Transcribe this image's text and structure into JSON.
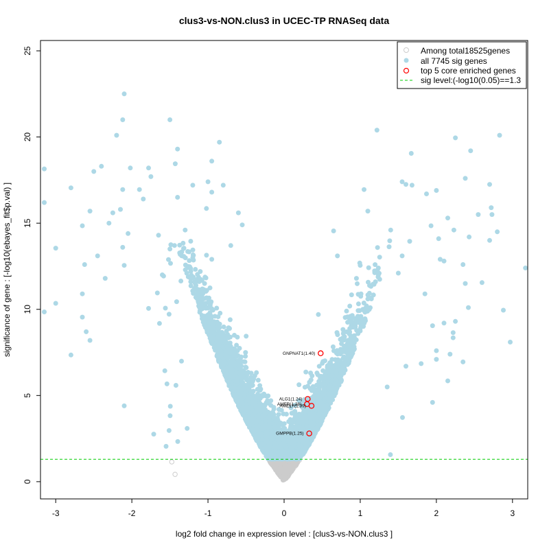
{
  "chart_data": {
    "type": "scatter",
    "title": "clus3-vs-NON.clus3 in UCEC-TP RNASeq data",
    "xlabel": "log2 fold change in expression level : [clus3-vs-NON.clus3 ]",
    "ylabel": "significance of gene : [-log10(ebayes_fit$p.val) ]",
    "xlim": [
      -3.2,
      3.2
    ],
    "ylim": [
      -1.0,
      25.6
    ],
    "x_ticks": [
      -3,
      -2,
      -1,
      0,
      1,
      2,
      3
    ],
    "y_ticks": [
      0,
      5,
      10,
      15,
      20,
      25
    ],
    "sig_level": 1.3,
    "colors": {
      "non_sig": "#cccccc",
      "sig": "#add8e6",
      "core": "#ff0000",
      "threshold": "#00cc00",
      "axis": "#000000"
    },
    "legend": {
      "placement": "top-right",
      "items": [
        {
          "label": "Among total18525genes",
          "marker": "open-circle",
          "color": "#cccccc"
        },
        {
          "label": "all 7745 sig genes",
          "marker": "filled-circle",
          "color": "#add8e6"
        },
        {
          "label": "top 5 core enriched genes",
          "marker": "open-circle",
          "color": "#ff0000"
        },
        {
          "label": "sig level:(-log10(0.05)==1.3",
          "marker": "dashed-line",
          "color": "#00cc00"
        }
      ]
    },
    "core_genes": [
      {
        "label": "GNPNAT1(1.40)",
        "x": 0.48,
        "y": 7.45
      },
      {
        "label": "ALG1(1.24)",
        "x": 0.31,
        "y": 4.8
      },
      {
        "label": "AMFR(1.28)",
        "x": 0.3,
        "y": 4.5
      },
      {
        "label": "AMELY(1.39)",
        "x": 0.36,
        "y": 4.4
      },
      {
        "label": "GMPPB(1.25)",
        "x": 0.33,
        "y": 2.8
      }
    ],
    "outlier_points": [
      [
        -2.1,
        22.5
      ],
      [
        -2.12,
        21.0
      ],
      [
        -1.5,
        21.0
      ],
      [
        -2.2,
        20.1
      ],
      [
        -0.85,
        19.7
      ],
      [
        -1.4,
        19.3
      ],
      [
        -0.95,
        18.6
      ],
      [
        -1.43,
        18.45
      ],
      [
        -2.4,
        18.3
      ],
      [
        -2.02,
        18.2
      ],
      [
        -1.78,
        18.2
      ],
      [
        -3.15,
        18.15
      ],
      [
        -2.5,
        18.0
      ],
      [
        -1.75,
        17.7
      ],
      [
        -1.0,
        17.4
      ],
      [
        -2.12,
        16.95
      ],
      [
        -2.8,
        17.05
      ],
      [
        -1.9,
        16.95
      ],
      [
        -1.2,
        17.2
      ],
      [
        -0.8,
        17.2
      ],
      [
        -0.95,
        16.8
      ],
      [
        -1.85,
        16.4
      ],
      [
        -3.15,
        16.2
      ],
      [
        -1.4,
        16.5
      ],
      [
        -2.15,
        15.8
      ],
      [
        -2.55,
        15.7
      ],
      [
        -1.02,
        15.85
      ],
      [
        -2.25,
        15.6
      ],
      [
        -0.6,
        15.6
      ],
      [
        -2.3,
        15.0
      ],
      [
        -2.65,
        14.85
      ],
      [
        -1.3,
        14.6
      ],
      [
        -2.05,
        14.4
      ],
      [
        -1.65,
        14.3
      ],
      [
        -0.55,
        14.9
      ],
      [
        -3.0,
        13.55
      ],
      [
        -2.12,
        13.6
      ],
      [
        -1.5,
        13.5
      ],
      [
        -0.7,
        13.7
      ],
      [
        -2.45,
        13.1
      ],
      [
        -2.62,
        12.6
      ],
      [
        -2.1,
        12.55
      ],
      [
        -2.35,
        11.8
      ],
      [
        -1.6,
        12.0
      ],
      [
        -2.65,
        10.9
      ],
      [
        -3.0,
        10.35
      ],
      [
        -3.15,
        9.85
      ],
      [
        -2.65,
        9.55
      ],
      [
        -2.6,
        8.7
      ],
      [
        -2.55,
        8.2
      ],
      [
        -2.8,
        7.35
      ],
      [
        -2.1,
        4.4
      ],
      [
        -1.55,
        2.05
      ],
      [
        -0.95,
        12.9
      ],
      [
        -1.2,
        13.0
      ],
      [
        1.22,
        20.4
      ],
      [
        1.67,
        19.05
      ],
      [
        2.25,
        19.95
      ],
      [
        2.45,
        19.2
      ],
      [
        2.83,
        20.1
      ],
      [
        2.38,
        17.6
      ],
      [
        2.7,
        17.25
      ],
      [
        1.55,
        17.4
      ],
      [
        1.6,
        17.25
      ],
      [
        1.68,
        17.2
      ],
      [
        1.05,
        16.95
      ],
      [
        2.0,
        16.9
      ],
      [
        1.87,
        16.7
      ],
      [
        2.72,
        15.9
      ],
      [
        2.73,
        15.5
      ],
      [
        1.1,
        15.7
      ],
      [
        2.15,
        15.3
      ],
      [
        2.55,
        15.5
      ],
      [
        1.93,
        14.85
      ],
      [
        2.23,
        14.6
      ],
      [
        1.4,
        14.6
      ],
      [
        2.8,
        14.5
      ],
      [
        2.43,
        14.2
      ],
      [
        0.65,
        14.55
      ],
      [
        1.65,
        13.95
      ],
      [
        2.03,
        14.1
      ],
      [
        2.7,
        14.0
      ],
      [
        2.05,
        12.9
      ],
      [
        1.55,
        13.1
      ],
      [
        2.1,
        12.8
      ],
      [
        2.35,
        12.6
      ],
      [
        1.0,
        12.55
      ],
      [
        3.17,
        12.4
      ],
      [
        1.5,
        12.1
      ],
      [
        0.95,
        11.8
      ],
      [
        1.2,
        11.6
      ],
      [
        2.38,
        11.5
      ],
      [
        2.6,
        11.55
      ],
      [
        1.85,
        10.9
      ],
      [
        1.1,
        10.6
      ],
      [
        2.42,
        10.1
      ],
      [
        2.88,
        9.95
      ],
      [
        2.25,
        9.3
      ],
      [
        2.1,
        9.2
      ],
      [
        1.95,
        9.05
      ],
      [
        2.22,
        8.65
      ],
      [
        2.22,
        8.35
      ],
      [
        2.97,
        8.1
      ],
      [
        2.0,
        7.6
      ],
      [
        2.18,
        7.4
      ],
      [
        2.0,
        7.1
      ],
      [
        2.35,
        6.95
      ],
      [
        1.8,
        6.85
      ],
      [
        1.6,
        6.7
      ],
      [
        2.15,
        5.85
      ],
      [
        1.95,
        4.6
      ],
      [
        0.82,
        9.9
      ],
      [
        0.45,
        9.7
      ],
      [
        0.7,
        13.1
      ]
    ]
  }
}
